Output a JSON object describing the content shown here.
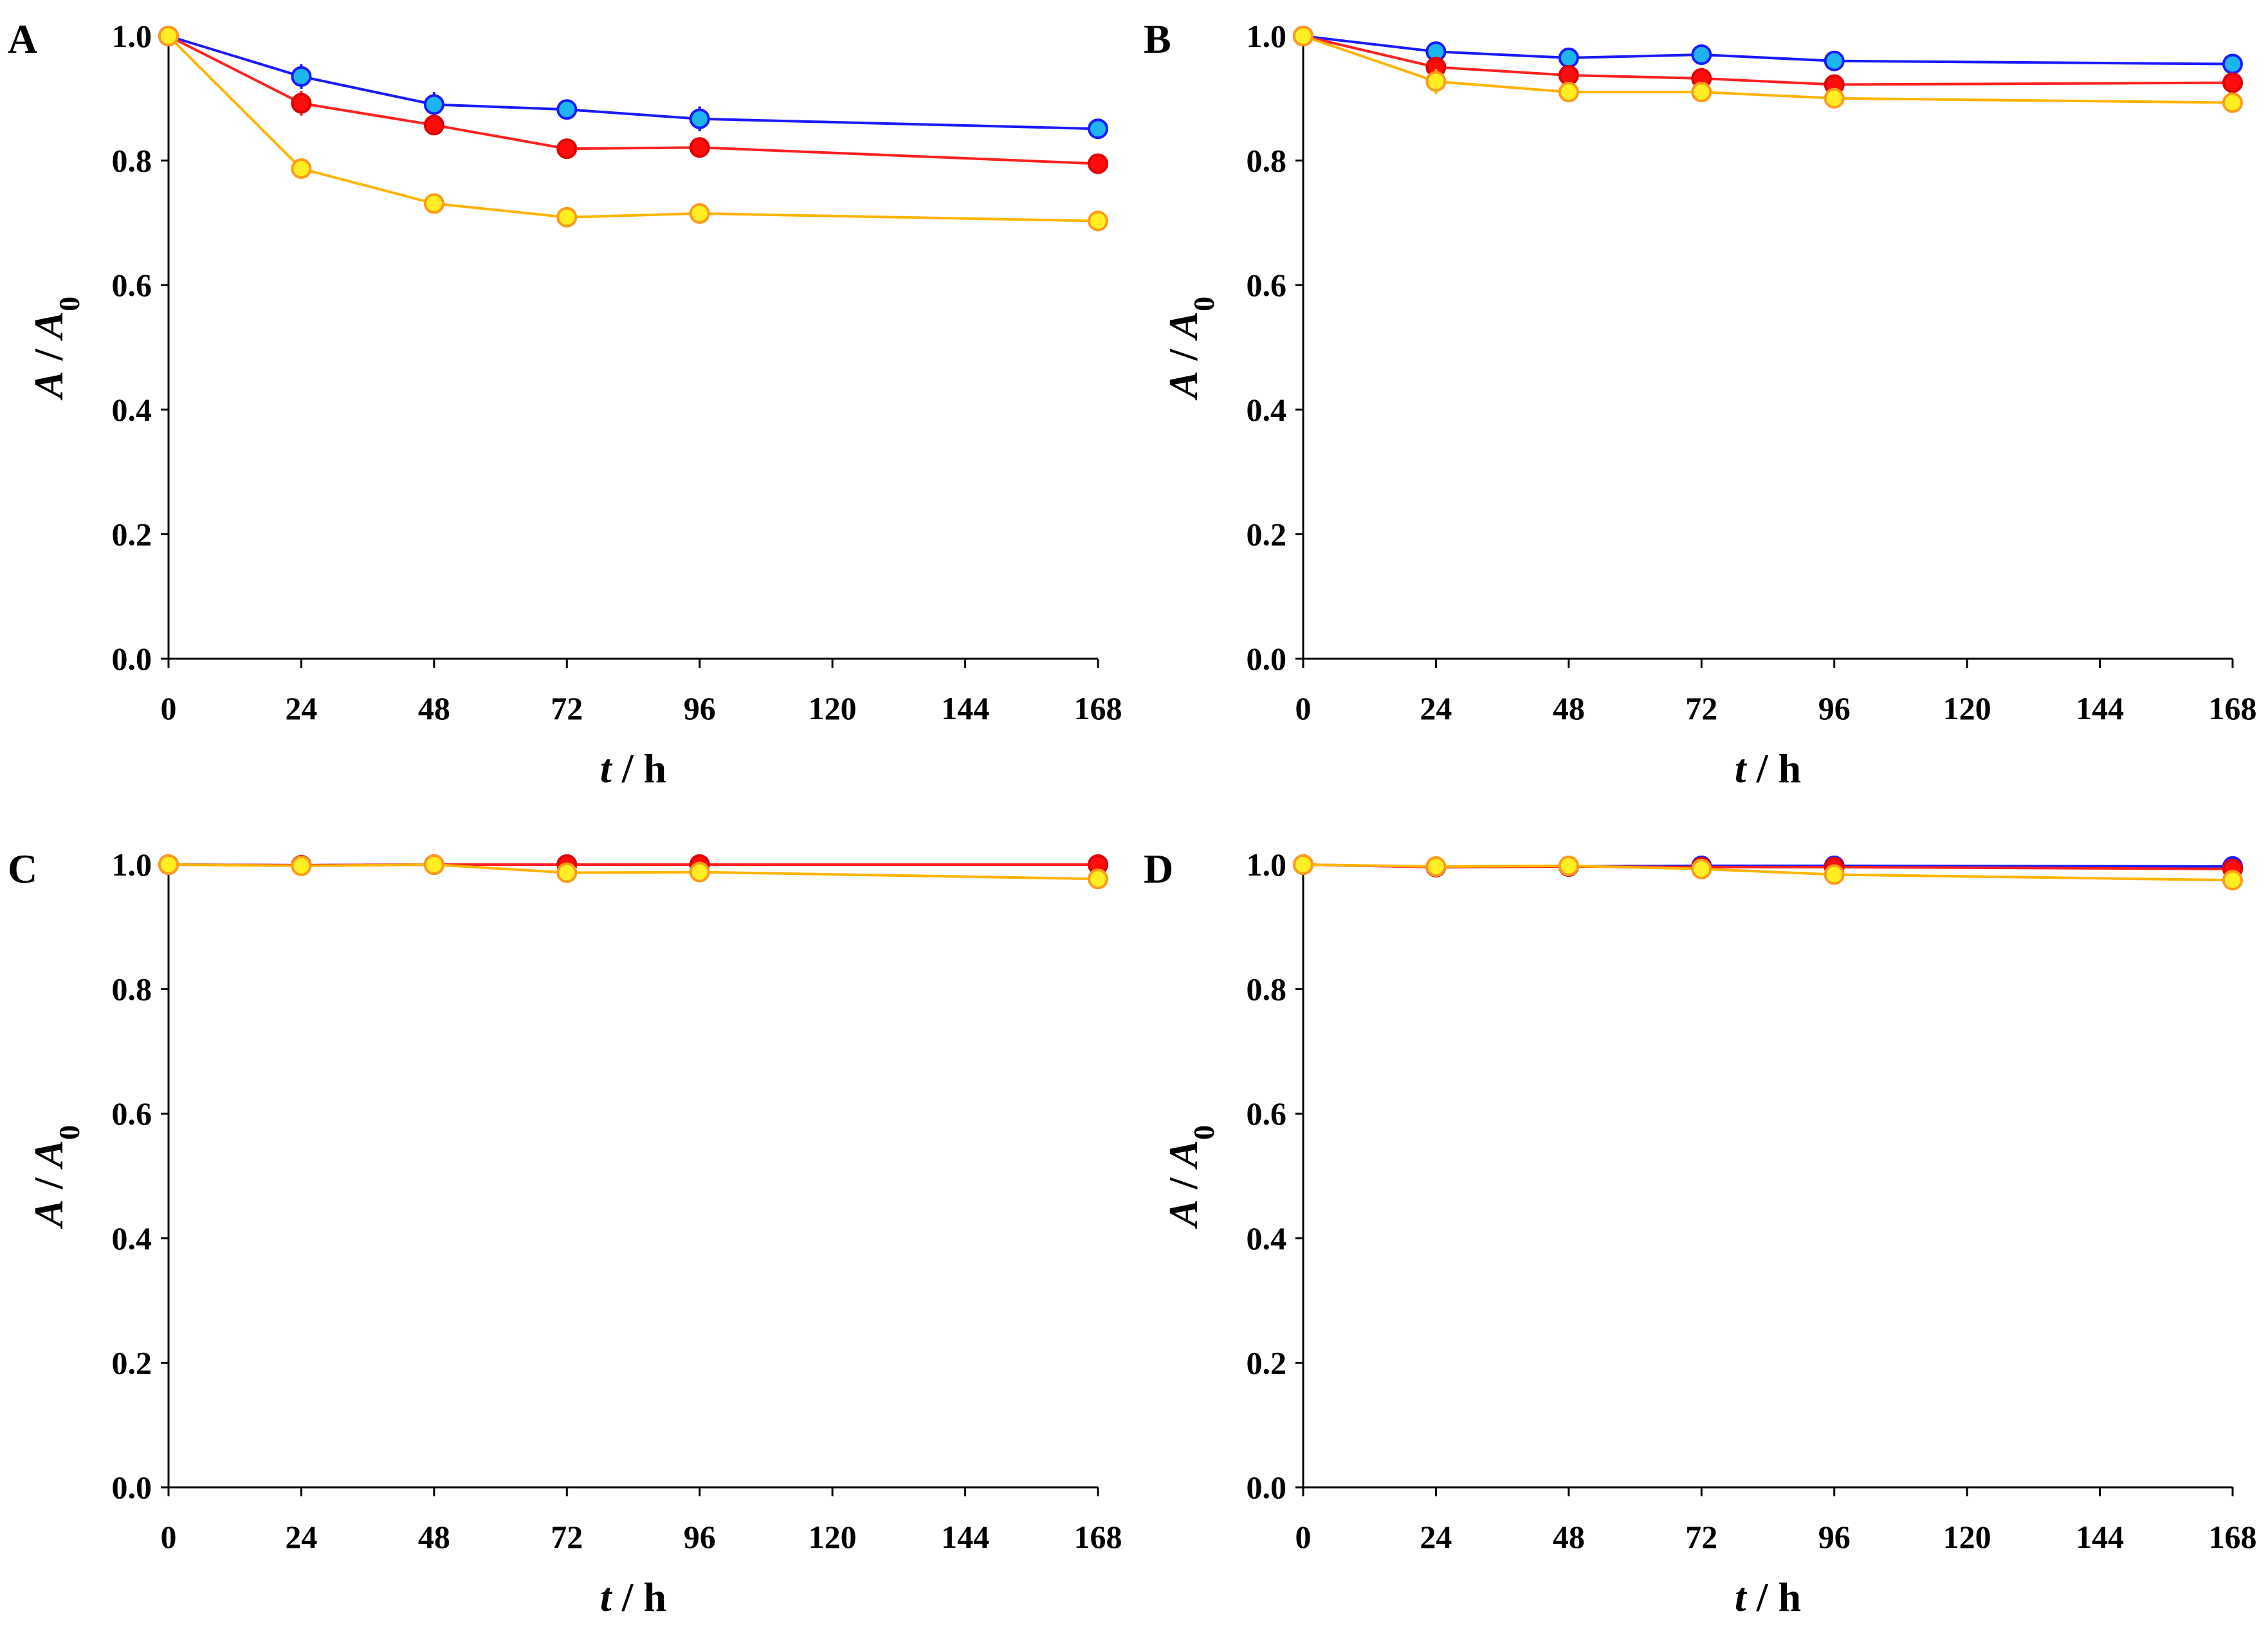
{
  "figure": {
    "series_names": [
      "blue",
      "red",
      "yellow"
    ],
    "colors": {
      "blue": {
        "line": "#1a1aff",
        "fill": "#1eb4f0",
        "edge": "#1a1aff"
      },
      "red": {
        "line": "#ff2020",
        "fill": "#ff0d0d",
        "edge": "#e00000"
      },
      "yellow": {
        "line": "#ffb400",
        "fill": "#ffee22",
        "edge": "#ff9a1a"
      }
    }
  },
  "chart_data": [
    {
      "panel": "A",
      "type": "line",
      "xlabel_var": "t",
      "xlabel_unit": " / h",
      "ylabel_var": "A",
      "ylabel_sep": " / ",
      "ylabel_sub": "0",
      "xlim": [
        0,
        168
      ],
      "ylim": [
        0.0,
        1.0
      ],
      "xticks": [
        0,
        24,
        48,
        72,
        96,
        120,
        144,
        168
      ],
      "xtick_labels": [
        "0",
        "24",
        "48",
        "72",
        "96",
        "120",
        "144",
        "168"
      ],
      "yticks": [
        0.0,
        0.2,
        0.4,
        0.6,
        0.8,
        1.0
      ],
      "ytick_labels": [
        "0.0",
        "0.2",
        "0.4",
        "0.6",
        "0.8",
        "1.0"
      ],
      "x": [
        0,
        24,
        48,
        72,
        96,
        168
      ],
      "series": [
        {
          "name": "blue",
          "values": [
            1.0,
            0.935,
            0.89,
            0.882,
            0.867,
            0.851
          ],
          "errors": [
            0,
            0.02,
            0.02,
            0.005,
            0.02,
            0.005
          ]
        },
        {
          "name": "red",
          "values": [
            1.0,
            0.892,
            0.857,
            0.819,
            0.821,
            0.795
          ],
          "errors": [
            0,
            0.02,
            0.015,
            0.005,
            0.005,
            0.01
          ]
        },
        {
          "name": "yellow",
          "values": [
            1.0,
            0.787,
            0.731,
            0.709,
            0.715,
            0.703
          ],
          "errors": [
            0,
            0.005,
            0.005,
            0.005,
            0.005,
            0.01
          ]
        }
      ]
    },
    {
      "panel": "B",
      "type": "line",
      "xlabel_var": "t",
      "xlabel_unit": " / h",
      "ylabel_var": "A",
      "ylabel_sep": " / ",
      "ylabel_sub": "0",
      "xlim": [
        0,
        168
      ],
      "ylim": [
        0.0,
        1.0
      ],
      "xticks": [
        0,
        24,
        48,
        72,
        96,
        120,
        144,
        168
      ],
      "xtick_labels": [
        "0",
        "24",
        "48",
        "72",
        "96",
        "120",
        "144",
        "168"
      ],
      "yticks": [
        0.0,
        0.2,
        0.4,
        0.6,
        0.8,
        1.0
      ],
      "ytick_labels": [
        "0.0",
        "0.2",
        "0.4",
        "0.6",
        "0.8",
        "1.0"
      ],
      "x": [
        0,
        24,
        48,
        72,
        96,
        168
      ],
      "series": [
        {
          "name": "blue",
          "values": [
            1.0,
            0.975,
            0.965,
            0.97,
            0.96,
            0.955
          ],
          "errors": [
            0,
            0.005,
            0.005,
            0.005,
            0.005,
            0.005
          ]
        },
        {
          "name": "red",
          "values": [
            1.0,
            0.95,
            0.937,
            0.932,
            0.922,
            0.925
          ],
          "errors": [
            0,
            0.01,
            0.005,
            0.005,
            0.005,
            0.005
          ]
        },
        {
          "name": "yellow",
          "values": [
            1.0,
            0.927,
            0.91,
            0.91,
            0.9,
            0.893
          ],
          "errors": [
            0,
            0.02,
            0.005,
            0.005,
            0.005,
            0.005
          ]
        }
      ]
    },
    {
      "panel": "C",
      "type": "line",
      "xlabel_var": "t",
      "xlabel_unit": " / h",
      "ylabel_var": "A",
      "ylabel_sep": " / ",
      "ylabel_sub": "0",
      "xlim": [
        0,
        168
      ],
      "ylim": [
        0.0,
        1.0
      ],
      "xticks": [
        0,
        24,
        48,
        72,
        96,
        120,
        144,
        168
      ],
      "xtick_labels": [
        "0",
        "24",
        "48",
        "72",
        "96",
        "120",
        "144",
        "168"
      ],
      "yticks": [
        0.0,
        0.2,
        0.4,
        0.6,
        0.8,
        1.0
      ],
      "ytick_labels": [
        "0.0",
        "0.2",
        "0.4",
        "0.6",
        "0.8",
        "1.0"
      ],
      "x": [
        0,
        24,
        48,
        72,
        96,
        168
      ],
      "series": [
        {
          "name": "blue",
          "values": [
            1.0,
            0.999,
            1.0,
            1.0,
            1.0,
            1.0
          ],
          "errors": [
            0,
            0,
            0,
            0,
            0,
            0
          ]
        },
        {
          "name": "red",
          "values": [
            1.0,
            0.999,
            1.0,
            1.0,
            1.0,
            1.0
          ],
          "errors": [
            0,
            0,
            0,
            0,
            0,
            0
          ]
        },
        {
          "name": "yellow",
          "values": [
            1.0,
            0.998,
            1.0,
            0.987,
            0.988,
            0.977
          ],
          "errors": [
            0,
            0,
            0,
            0.005,
            0.005,
            0.005
          ]
        }
      ]
    },
    {
      "panel": "D",
      "type": "line",
      "xlabel_var": "t",
      "xlabel_unit": " / h",
      "ylabel_var": "A",
      "ylabel_sep": " / ",
      "ylabel_sub": "0",
      "xlim": [
        0,
        168
      ],
      "ylim": [
        0.0,
        1.0
      ],
      "xticks": [
        0,
        24,
        48,
        72,
        96,
        120,
        144,
        168
      ],
      "xtick_labels": [
        "0",
        "24",
        "48",
        "72",
        "96",
        "120",
        "144",
        "168"
      ],
      "yticks": [
        0.0,
        0.2,
        0.4,
        0.6,
        0.8,
        1.0
      ],
      "ytick_labels": [
        "0.0",
        "0.2",
        "0.4",
        "0.6",
        "0.8",
        "1.0"
      ],
      "x": [
        0,
        24,
        48,
        72,
        96,
        168
      ],
      "series": [
        {
          "name": "blue",
          "values": [
            1.0,
            0.996,
            0.997,
            0.998,
            0.998,
            0.997
          ],
          "errors": [
            0,
            0,
            0,
            0,
            0,
            0
          ]
        },
        {
          "name": "red",
          "values": [
            1.0,
            0.996,
            0.997,
            0.996,
            0.996,
            0.993
          ],
          "errors": [
            0,
            0,
            0,
            0,
            0,
            0
          ]
        },
        {
          "name": "yellow",
          "values": [
            1.0,
            0.997,
            0.998,
            0.993,
            0.984,
            0.975
          ],
          "errors": [
            0,
            0,
            0,
            0.005,
            0.005,
            0.005
          ]
        }
      ]
    }
  ]
}
